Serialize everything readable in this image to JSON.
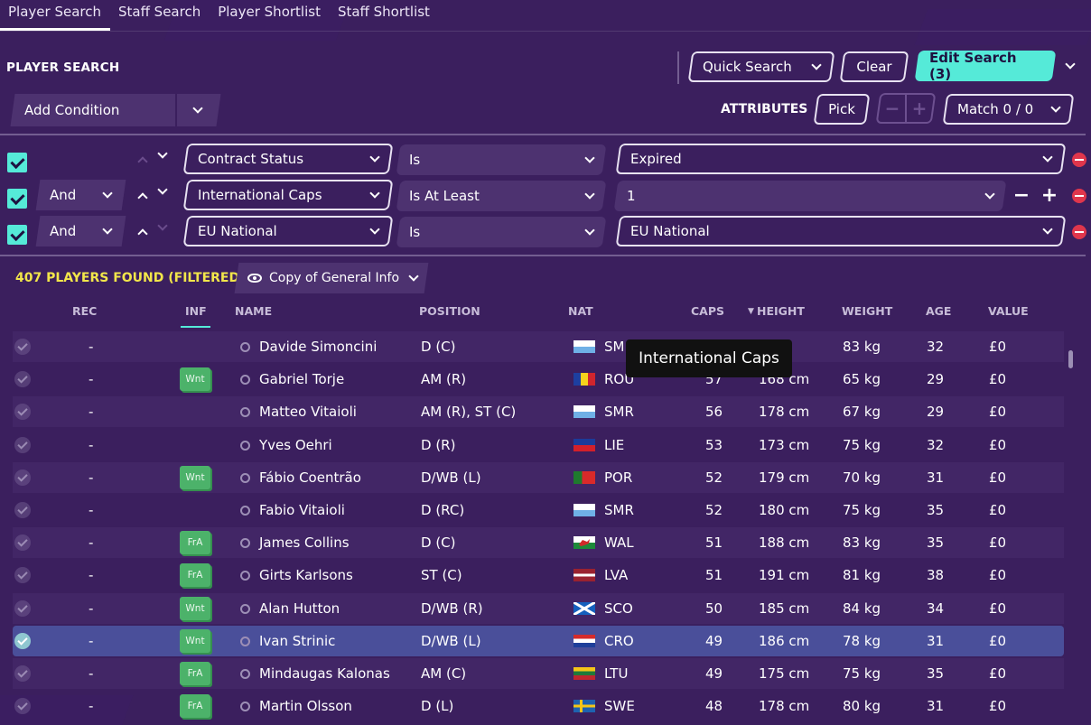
{
  "tabs": [
    "Player Search",
    "Staff Search",
    "Player Shortlist",
    "Staff Shortlist"
  ],
  "section_title": "PLAYER SEARCH",
  "toolbar": {
    "quick_search": "Quick Search",
    "clear": "Clear",
    "edit_search": "Edit Search (3)",
    "add_condition": "Add Condition",
    "attributes_label": "ATTRIBUTES",
    "pick": "Pick",
    "match": "Match 0 / 0"
  },
  "conditions": [
    {
      "logic": "",
      "field": "Contract Status",
      "operator": "Is",
      "value": "Expired"
    },
    {
      "logic": "And",
      "field": "International Caps",
      "operator": "Is At Least",
      "value": "1"
    },
    {
      "logic": "And",
      "field": "EU National",
      "operator": "Is",
      "value": "EU National"
    }
  ],
  "results": {
    "count_label": "407 PLAYERS FOUND (FILTERED)",
    "view": "Copy of General Info"
  },
  "columns": [
    "REC",
    "INF",
    "NAME",
    "POSITION",
    "NAT",
    "CAPS",
    "HEIGHT",
    "WEIGHT",
    "AGE",
    "VALUE"
  ],
  "tooltip": "International Caps",
  "rows": [
    {
      "rec": "-",
      "inf": "",
      "name": "Davide Simoncini",
      "position": "D (C)",
      "nat": "SMR",
      "nat_shown": "SM",
      "caps": "",
      "height": "m",
      "weight": "83 kg",
      "age": "32",
      "value": "£0"
    },
    {
      "rec": "-",
      "inf": "Wnt",
      "name": "Gabriel Torje",
      "position": "AM (R)",
      "nat": "ROU",
      "nat_shown": "ROU",
      "caps": "57",
      "height": "168 cm",
      "weight": "65 kg",
      "age": "29",
      "value": "£0"
    },
    {
      "rec": "-",
      "inf": "",
      "name": "Matteo Vitaioli",
      "position": "AM (R), ST (C)",
      "nat": "SMR",
      "nat_shown": "SMR",
      "caps": "56",
      "height": "178 cm",
      "weight": "67 kg",
      "age": "29",
      "value": "£0"
    },
    {
      "rec": "-",
      "inf": "",
      "name": "Yves Oehri",
      "position": "D (R)",
      "nat": "LIE",
      "nat_shown": "LIE",
      "caps": "53",
      "height": "173 cm",
      "weight": "75 kg",
      "age": "32",
      "value": "£0"
    },
    {
      "rec": "-",
      "inf": "Wnt",
      "name": "Fábio Coentrão",
      "position": "D/WB (L)",
      "nat": "POR",
      "nat_shown": "POR",
      "caps": "52",
      "height": "179 cm",
      "weight": "70 kg",
      "age": "31",
      "value": "£0"
    },
    {
      "rec": "-",
      "inf": "",
      "name": "Fabio Vitaioli",
      "position": "D (RC)",
      "nat": "SMR",
      "nat_shown": "SMR",
      "caps": "52",
      "height": "180 cm",
      "weight": "75 kg",
      "age": "35",
      "value": "£0"
    },
    {
      "rec": "-",
      "inf": "FrA",
      "name": "James Collins",
      "position": "D (C)",
      "nat": "WAL",
      "nat_shown": "WAL",
      "caps": "51",
      "height": "188 cm",
      "weight": "83 kg",
      "age": "35",
      "value": "£0"
    },
    {
      "rec": "-",
      "inf": "FrA",
      "name": "Girts Karlsons",
      "position": "ST (C)",
      "nat": "LVA",
      "nat_shown": "LVA",
      "caps": "51",
      "height": "191 cm",
      "weight": "81 kg",
      "age": "38",
      "value": "£0"
    },
    {
      "rec": "-",
      "inf": "Wnt",
      "name": "Alan Hutton",
      "position": "D/WB (R)",
      "nat": "SCO",
      "nat_shown": "SCO",
      "caps": "50",
      "height": "185 cm",
      "weight": "84 kg",
      "age": "34",
      "value": "£0"
    },
    {
      "rec": "-",
      "inf": "Wnt",
      "name": "Ivan Strinic",
      "position": "D/WB (L)",
      "nat": "CRO",
      "nat_shown": "CRO",
      "caps": "49",
      "height": "186 cm",
      "weight": "78 kg",
      "age": "31",
      "value": "£0"
    },
    {
      "rec": "-",
      "inf": "FrA",
      "name": "Mindaugas Kalonas",
      "position": "AM (C)",
      "nat": "LTU",
      "nat_shown": "LTU",
      "caps": "49",
      "height": "175 cm",
      "weight": "75 kg",
      "age": "35",
      "value": "£0"
    },
    {
      "rec": "-",
      "inf": "FrA",
      "name": "Martin Olsson",
      "position": "D (L)",
      "nat": "SWE",
      "nat_shown": "SWE",
      "caps": "48",
      "height": "178 cm",
      "weight": "80 kg",
      "age": "31",
      "value": "£0"
    }
  ],
  "colors": {
    "accent": "#55ead8",
    "background": "#3b1f5e",
    "found_text": "#f2e64a",
    "badge": "#4cb26a",
    "remove": "#e0364c",
    "selected_row": "#4a4f9a"
  }
}
